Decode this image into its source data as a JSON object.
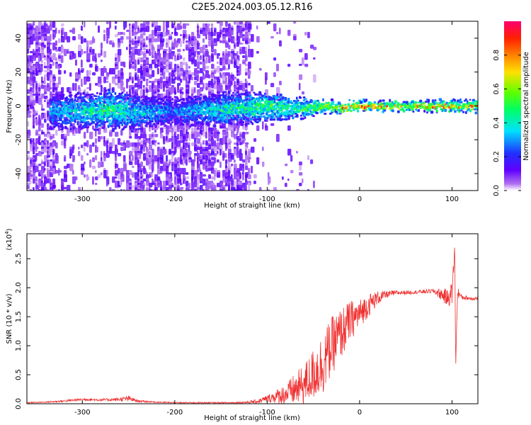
{
  "title": "C2E5.2024.003.05.12.R16",
  "chart_data": [
    {
      "type": "heatmap",
      "xlabel": "Height of straight line (km)",
      "ylabel": "Frequency (Hz)",
      "xlim": [
        -360,
        128
      ],
      "ylim": [
        -50,
        50
      ],
      "xticks": [
        -300,
        -200,
        -100,
        0,
        100
      ],
      "xtick_labels": [
        "-300",
        "-200",
        "-100",
        "0",
        "100"
      ],
      "yticks": [
        -40,
        -20,
        0,
        20,
        40
      ],
      "ytick_labels": [
        "-40",
        "-20",
        "0",
        "20",
        "40"
      ],
      "colorbar": {
        "label": "Normalized spectral amplitude",
        "range": [
          0,
          1
        ],
        "ticks": [
          0.0,
          0.2,
          0.4,
          0.6,
          0.8
        ],
        "tick_labels": [
          "0.0",
          "0.2",
          "0.4",
          "0.6",
          "0.8"
        ],
        "colors": [
          "#ffffff",
          "#b070f0",
          "#6000ff",
          "#2030ff",
          "#00e0ff",
          "#00ff60",
          "#60ff00",
          "#ffe000",
          "#ff8000",
          "#ff2000",
          "#ff0070"
        ]
      },
      "description_points": {
        "ridge_x": [
          -335,
          -300,
          -270,
          -240,
          -200,
          -150,
          -120,
          -100,
          -80,
          -60,
          -40,
          -20,
          0,
          50,
          100,
          125
        ],
        "ridge_freq": [
          -3,
          -3,
          -2,
          -4,
          -3,
          -2,
          -1,
          0,
          -1,
          -1,
          0,
          -1,
          0,
          0,
          0,
          0
        ],
        "ridge_amplitude": [
          0.35,
          0.45,
          0.5,
          0.4,
          0.3,
          0.45,
          0.5,
          0.55,
          0.5,
          0.55,
          0.6,
          0.75,
          0.85,
          0.7,
          0.75,
          0.75
        ],
        "ridge_halfwidth_hz": [
          10,
          10,
          12,
          10,
          8,
          10,
          9,
          8,
          7,
          6,
          4,
          3,
          3,
          3,
          3,
          3
        ]
      }
    },
    {
      "type": "line",
      "xlabel": "Height of straight line (km)",
      "ylabel": "SNR (10 * v/v)",
      "y_multiplier_label": "(x10",
      "y_multiplier_exp": "4",
      "xlim": [
        -360,
        128
      ],
      "ylim": [
        0,
        2.93
      ],
      "xticks": [
        -300,
        -200,
        -100,
        0,
        100
      ],
      "xtick_labels": [
        "-300",
        "-200",
        "-100",
        "0",
        "100"
      ],
      "yticks": [
        0.0,
        0.5,
        1.0,
        1.5,
        2.0,
        2.5
      ],
      "ytick_labels": [
        "0.0",
        "0.5",
        "1.0",
        "1.5",
        "2.0",
        "2.5"
      ],
      "line_color": "#f03030",
      "series": [
        {
          "x": [
            -360,
            -340,
            -320,
            -300,
            -280,
            -260,
            -250,
            -240,
            -220,
            -200,
            -180,
            -160,
            -140,
            -120,
            -110,
            -100,
            -90,
            -80,
            -70,
            -60,
            -50,
            -40,
            -30,
            -20,
            -10,
            0,
            10,
            20,
            30,
            40,
            60,
            80,
            90,
            95,
            100,
            103,
            104,
            106,
            110,
            120,
            128
          ],
          "y": [
            0.02,
            0.03,
            0.05,
            0.08,
            0.07,
            0.08,
            0.1,
            0.05,
            0.03,
            0.02,
            0.02,
            0.02,
            0.02,
            0.03,
            0.05,
            0.1,
            0.15,
            0.2,
            0.3,
            0.4,
            0.6,
            0.8,
            1.1,
            1.3,
            1.5,
            1.6,
            1.75,
            1.85,
            1.9,
            1.92,
            1.93,
            1.95,
            1.9,
            1.85,
            1.95,
            2.7,
            0.7,
            1.95,
            1.85,
            1.82,
            1.82
          ],
          "noise": [
            0.01,
            0.01,
            0.02,
            0.02,
            0.02,
            0.03,
            0.05,
            0.02,
            0.01,
            0.01,
            0.01,
            0.01,
            0.01,
            0.02,
            0.04,
            0.06,
            0.12,
            0.18,
            0.28,
            0.35,
            0.45,
            0.55,
            0.5,
            0.45,
            0.35,
            0.25,
            0.2,
            0.12,
            0.06,
            0.04,
            0.03,
            0.04,
            0.12,
            0.15,
            0.2,
            0.1,
            0.1,
            0.1,
            0.05,
            0.03,
            0.03
          ]
        }
      ]
    }
  ]
}
